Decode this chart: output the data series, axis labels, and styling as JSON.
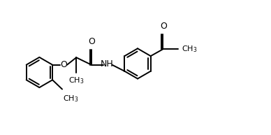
{
  "bg_color": "#ffffff",
  "line_color": "#000000",
  "line_width": 1.4,
  "font_size": 8.5,
  "figsize": [
    3.88,
    1.93
  ],
  "dpi": 100,
  "xlim": [
    0,
    11
  ],
  "ylim": [
    0,
    5.5
  ]
}
